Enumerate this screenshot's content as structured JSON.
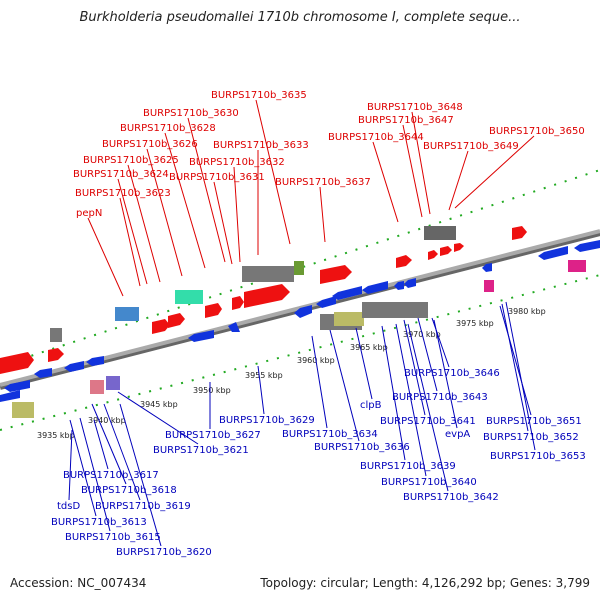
{
  "title": "Burkholderia pseudomallei 1710b chromosome I, complete seque...",
  "footer": {
    "accession": "Accession: NC_007434",
    "summary": "Topology: circular; Length: 4,126,292 bp; Genes: 3,799"
  },
  "colors": {
    "top_labels": "#dd0000",
    "bottom_labels": "#0000bb",
    "forward_gene": "#ee1111",
    "reverse_gene": "#1133dd",
    "backbone": "#888888",
    "ruler_dots": "#22aa22"
  },
  "ruler_ticks": [
    "3935 kbp",
    "3940 kbp",
    "3945 kbp",
    "3950 kbp",
    "3955 kbp",
    "3960 kbp",
    "3965 kbp",
    "3970 kbp",
    "3975 kbp",
    "3980 kbp"
  ],
  "top_labels": [
    "BURPS1710b_3635",
    "BURPS1710b_3630",
    "BURPS1710b_3628",
    "BURPS1710b_3626",
    "BURPS1710b_3625",
    "BURPS1710b_3624",
    "BURPS1710b_3623",
    "pepN",
    "BURPS1710b_3633",
    "BURPS1710b_3632",
    "BURPS1710b_3631",
    "BURPS1710b_3637",
    "BURPS1710b_3648",
    "BURPS1710b_3647",
    "BURPS1710b_3644",
    "BURPS1710b_3649",
    "BURPS1710b_3650"
  ],
  "bottom_labels": [
    "BURPS1710b_3646",
    "BURPS1710b_3643",
    "clpB",
    "BURPS1710b_3641",
    "evpA",
    "BURPS1710b_3651",
    "BURPS1710b_3652",
    "BURPS1710b_3653",
    "BURPS1710b_3629",
    "BURPS1710b_3627",
    "BURPS1710b_3621",
    "BURPS1710b_3634",
    "BURPS1710b_3636",
    "BURPS1710b_3639",
    "BURPS1710b_3640",
    "BURPS1710b_3642",
    "BURPS1710b_3617",
    "BURPS1710b_3618",
    "BURPS1710b_3619",
    "tdsD",
    "BURPS1710b_3613",
    "BURPS1710b_3615",
    "BURPS1710b_3620"
  ]
}
